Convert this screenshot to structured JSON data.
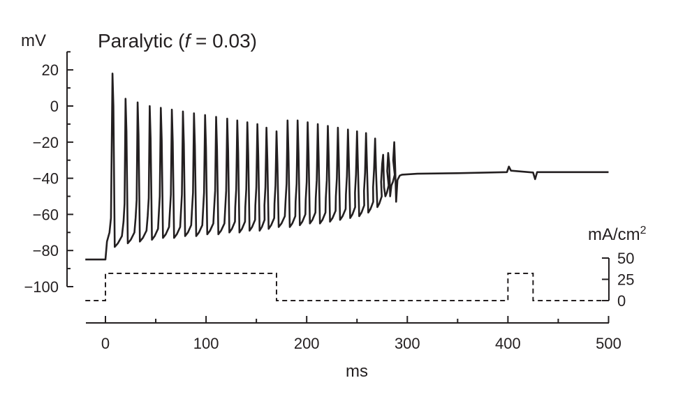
{
  "chart_data": {
    "type": "line",
    "title_prefix": "Paralytic (",
    "title_var": "f",
    "title_suffix": " = 0.03)",
    "xlabel": "ms",
    "ylabel_left": "mV",
    "ylabel_right_base": "mA/cm",
    "ylabel_right_sup": "2",
    "xlim": [
      -20,
      500
    ],
    "ylim": [
      -100,
      25
    ],
    "x_ticks": [
      0,
      100,
      200,
      300,
      400,
      500
    ],
    "y_ticks_labels": [
      "20",
      "0",
      "−20",
      "−40",
      "−60",
      "−80",
      "−100"
    ],
    "y_ticks": [
      20,
      0,
      -20,
      -40,
      -60,
      -80,
      -100
    ],
    "current_ticks": [
      50,
      25,
      0
    ],
    "current_lim": [
      0,
      50
    ],
    "series": [
      {
        "style": "solid",
        "resting_potential": -85,
        "stim_onset": 0,
        "spikes": [
          {
            "t": 7,
            "peak": 18,
            "trough": -78
          },
          {
            "t": 20,
            "peak": 4,
            "trough": -76
          },
          {
            "t": 32,
            "peak": 2,
            "trough": -75
          },
          {
            "t": 44,
            "peak": 0,
            "trough": -74
          },
          {
            "t": 55,
            "peak": -1,
            "trough": -73
          },
          {
            "t": 66,
            "peak": -2,
            "trough": -73
          },
          {
            "t": 77,
            "peak": -3,
            "trough": -72
          },
          {
            "t": 88,
            "peak": -4,
            "trough": -72
          },
          {
            "t": 99,
            "peak": -5,
            "trough": -71
          },
          {
            "t": 110,
            "peak": -6,
            "trough": -71
          },
          {
            "t": 121,
            "peak": -7,
            "trough": -70
          },
          {
            "t": 131,
            "peak": -8,
            "trough": -70
          },
          {
            "t": 141,
            "peak": -9,
            "trough": -69
          },
          {
            "t": 151,
            "peak": -10,
            "trough": -69
          },
          {
            "t": 160,
            "peak": -12,
            "trough": -68
          },
          {
            "t": 170,
            "peak": -14,
            "trough": -67
          },
          {
            "t": 181,
            "peak": -8,
            "trough": -67
          },
          {
            "t": 191,
            "peak": -8,
            "trough": -66
          },
          {
            "t": 201,
            "peak": -9,
            "trough": -65
          },
          {
            "t": 211,
            "peak": -10,
            "trough": -65
          },
          {
            "t": 221,
            "peak": -11,
            "trough": -64
          },
          {
            "t": 231,
            "peak": -12,
            "trough": -63
          },
          {
            "t": 241,
            "peak": -13,
            "trough": -62
          },
          {
            "t": 250,
            "peak": -14,
            "trough": -61
          },
          {
            "t": 259,
            "peak": -15,
            "trough": -59
          },
          {
            "t": 268,
            "peak": -18,
            "trough": -56
          },
          {
            "t": 276,
            "peak": -27,
            "trough": -50
          },
          {
            "t": 282,
            "peak": -32,
            "trough": -44
          },
          {
            "t": 288,
            "peak": -35,
            "trough": -41
          }
        ],
        "plateau": [
          [
            295,
            -38
          ],
          [
            310,
            -37.5
          ],
          [
            350,
            -37.2
          ],
          [
            399,
            -36.6
          ],
          [
            401,
            -33.5
          ],
          [
            403,
            -35.8
          ],
          [
            425,
            -36.8
          ],
          [
            427,
            -40.5
          ],
          [
            429,
            -36.6
          ],
          [
            460,
            -36.6
          ],
          [
            500,
            -36.6
          ]
        ]
      },
      {
        "style": "dashed",
        "points": [
          [
            -20,
            0
          ],
          [
            0,
            0
          ],
          [
            0,
            32
          ],
          [
            170,
            32
          ],
          [
            170,
            0
          ],
          [
            400,
            0
          ],
          [
            400,
            32
          ],
          [
            425,
            32
          ],
          [
            425,
            0
          ],
          [
            500,
            0
          ]
        ]
      }
    ]
  }
}
